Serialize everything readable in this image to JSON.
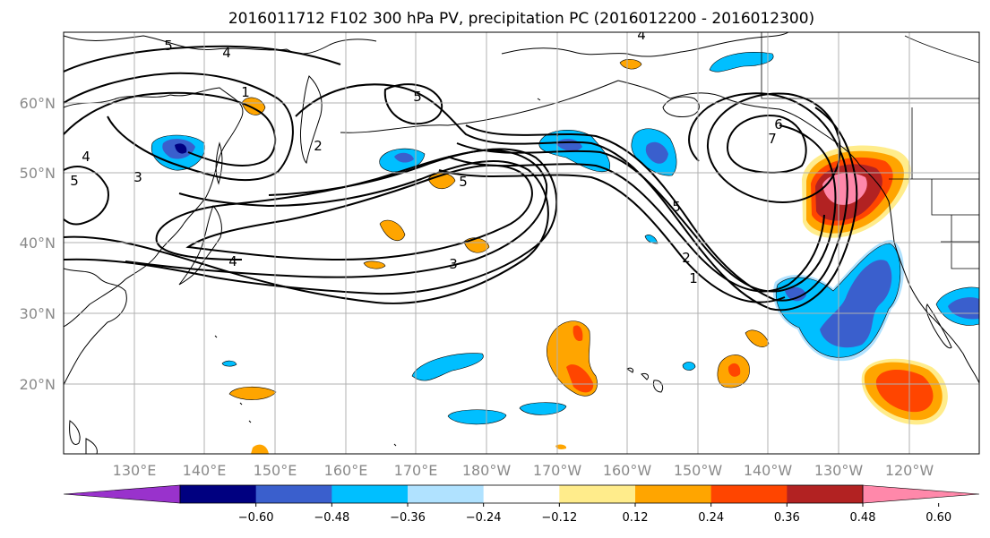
{
  "title": "2016011712 F102 300 hPa PV, precipitation PC (2016012200 - 2016012300)",
  "lat_labels": [
    "60°N",
    "50°N",
    "40°N",
    "30°N",
    "20°N"
  ],
  "lon_labels": [
    "130°E",
    "140°E",
    "150°E",
    "160°E",
    "170°E",
    "180°W",
    "170°W",
    "160°W",
    "150°W",
    "140°W",
    "130°W",
    "120°W"
  ],
  "colorbar": {
    "colors": [
      "#9932cc",
      "#000080",
      "#3a5fcd",
      "#00bfff",
      "#b0e2ff",
      "#ffffff",
      "#ffec8b",
      "#ffa500",
      "#ff4500",
      "#b22222",
      "#ff88aa"
    ],
    "tick_labels": [
      "−0.60",
      "−0.48",
      "−0.36",
      "−0.24",
      "−0.12",
      "0.12",
      "0.24",
      "0.36",
      "0.48",
      "0.60"
    ],
    "extend": "both"
  },
  "pv_contour_labels": [
    "5",
    "4",
    "4",
    "5",
    "5",
    "6",
    "7",
    "5",
    "3",
    "4",
    "5",
    "4",
    "2",
    "1",
    "2",
    "3",
    "1"
  ],
  "map": {
    "projection": "cylindrical",
    "lon_range": [
      "120°E",
      "110°W"
    ],
    "lat_range": [
      "10°N",
      "70°N"
    ],
    "gridlines": true
  }
}
